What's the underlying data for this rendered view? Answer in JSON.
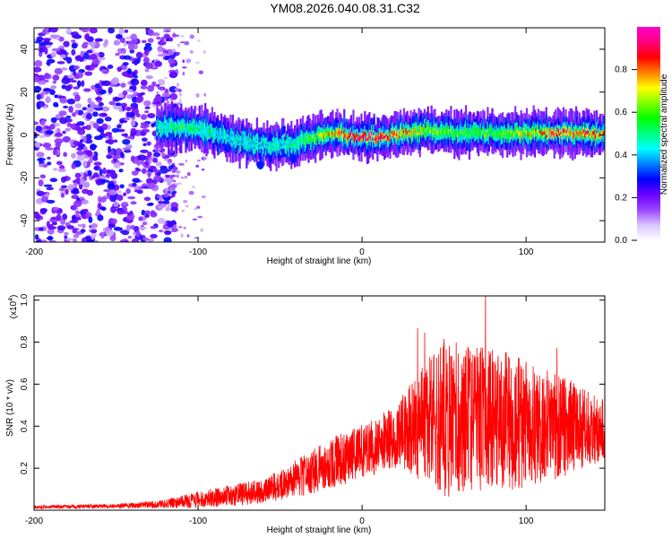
{
  "title": "YM08.2026.040.08.31.C32",
  "chart_data": [
    {
      "type": "heatmap",
      "xlabel": "Height of straight line (km)",
      "ylabel": "Frequency (Hz)",
      "xlim": [
        -200,
        148
      ],
      "ylim": [
        -50,
        50
      ],
      "xticks": [
        -200,
        -100,
        0,
        100
      ],
      "yticks": [
        -40,
        -20,
        0,
        20,
        40
      ],
      "colorbar": {
        "label": "Normalized spectral amplitude",
        "range": [
          0,
          1
        ],
        "ticks": [
          "0.0",
          "0.2",
          "0.4",
          "0.6",
          "0.8"
        ],
        "colormap": [
          "#ffffff",
          "#d8c6ff",
          "#9a45ff",
          "#6b00ff",
          "#0000ff",
          "#0080ff",
          "#00ffff",
          "#00ff80",
          "#00ff00",
          "#80ff00",
          "#ffff00",
          "#ff8000",
          "#ff0000",
          "#ff007f",
          "#ff00cc"
        ]
      },
      "ridge": {
        "description_points_x": [
          -125,
          -110,
          -100,
          -80,
          -60,
          -40,
          -20,
          0,
          20,
          40,
          60,
          80,
          100,
          120,
          148
        ],
        "center_hz": [
          4,
          3,
          3,
          -2,
          -5,
          -4,
          1,
          -1,
          0,
          2,
          1,
          1,
          1,
          1,
          0
        ],
        "peak_amplitude": [
          0.45,
          0.55,
          0.5,
          0.45,
          0.45,
          0.5,
          0.75,
          0.95,
          0.85,
          0.65,
          0.6,
          0.6,
          0.7,
          0.85,
          0.8
        ],
        "noise_region_x": [
          -200,
          -125
        ]
      }
    },
    {
      "type": "line",
      "xlabel": "Height of straight line (km)",
      "ylabel": "SNR (10 * v/v)",
      "y_multiplier": "(x10",
      "y_multiplier_exp": "4",
      "y_multiplier_close": ")",
      "xlim": [
        -200,
        148
      ],
      "ylim": [
        0,
        1.02
      ],
      "xticks": [
        -200,
        -100,
        0,
        100
      ],
      "yticks": [
        "0.2",
        "0.4",
        "0.6",
        "0.8",
        "1.0"
      ],
      "ytick_values": [
        0.2,
        0.4,
        0.6,
        0.8,
        1.0
      ],
      "series": [
        {
          "name": "SNR",
          "color": "#ff0000",
          "envelope_x": [
            -200,
            -150,
            -120,
            -100,
            -80,
            -60,
            -40,
            -20,
            0,
            20,
            40,
            50,
            70,
            90,
            100,
            120,
            148
          ],
          "envelope_mean": [
            0.015,
            0.02,
            0.03,
            0.05,
            0.07,
            0.09,
            0.15,
            0.22,
            0.28,
            0.35,
            0.42,
            0.44,
            0.44,
            0.42,
            0.41,
            0.4,
            0.38
          ],
          "envelope_spread": [
            0.008,
            0.01,
            0.02,
            0.04,
            0.05,
            0.06,
            0.09,
            0.12,
            0.13,
            0.15,
            0.3,
            0.38,
            0.35,
            0.33,
            0.3,
            0.25,
            0.15
          ]
        }
      ]
    }
  ]
}
